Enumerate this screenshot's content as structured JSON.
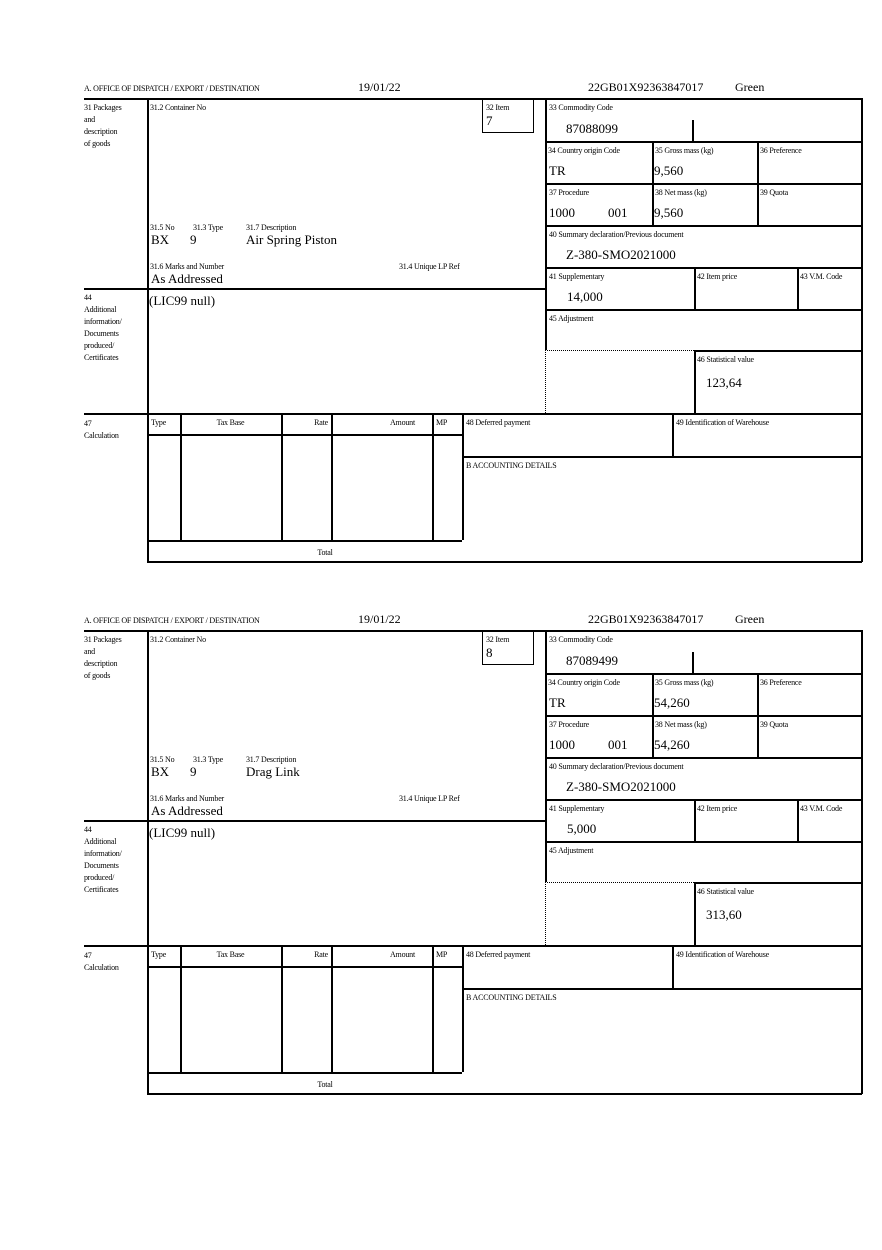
{
  "labels": {
    "office": "A. OFFICE OF DISPATCH / EXPORT / DESTINATION",
    "packages": [
      "31 Packages",
      "and",
      "description",
      "of goods"
    ],
    "container_no": "31.2 Container No",
    "item": "32 Item",
    "commodity_code": "33 Commodity Code",
    "country_origin": "34 Country origin Code",
    "gross_mass": "35 Gross mass (kg)",
    "preference": "36 Preference",
    "procedure": "37 Procedure",
    "net_mass": "38 Net mass (kg)",
    "quota": "39 Quota",
    "summary_declaration": "40 Summary declaration/Previous document",
    "package_no": "31.5 No",
    "package_type": "31.3 Type",
    "description": "31.7 Description",
    "marks": "31.6 Marks and Number",
    "unique_lp_ref": "31.4 Unique LP Ref",
    "supplementary": "41 Supplementary",
    "item_price": "42 Item price",
    "vm_code": "43 V.M. Code",
    "additional_info": [
      "44",
      "Additional",
      "information/",
      "Documents",
      "produced/",
      "Certificates"
    ],
    "adjustment": "45 Adjustment",
    "statistical_value": "46 Statistical value",
    "calculation": [
      "47",
      "Calculation"
    ],
    "calc_type": "Type",
    "calc_tax_base": "Tax Base",
    "calc_rate": "Rate",
    "calc_amount": "Amount",
    "calc_mp": "MP",
    "calc_total": "Total",
    "deferred_payment": "48 Deferred payment",
    "warehouse": "49 Identification of Warehouse",
    "accounting": "B ACCOUNTING DETAILS"
  },
  "forms": [
    {
      "date": "19/01/22",
      "reference": "22GB01X92363847017",
      "route": "Green",
      "item": "7",
      "commodity_code": "87088099",
      "country_origin": "TR",
      "gross_mass": "9,560",
      "procedure": "1000",
      "procedure_extra": "001",
      "net_mass": "9,560",
      "summary_declaration": "Z-380-SMO2021000",
      "package_no": "BX",
      "package_type": "9",
      "description": "Air Spring Piston",
      "marks": "As Addressed",
      "supplementary": "14,000",
      "additional_info": "(LIC99 null)",
      "statistical_value": "123,64"
    },
    {
      "date": "19/01/22",
      "reference": "22GB01X92363847017",
      "route": "Green",
      "item": "8",
      "commodity_code": "87089499",
      "country_origin": "TR",
      "gross_mass": "54,260",
      "procedure": "1000",
      "procedure_extra": "001",
      "net_mass": "54,260",
      "summary_declaration": "Z-380-SMO2021000",
      "package_no": "BX",
      "package_type": "9",
      "description": "Drag Link",
      "marks": "As Addressed",
      "supplementary": "5,000",
      "additional_info": "(LIC99 null)",
      "statistical_value": "313,60"
    }
  ]
}
